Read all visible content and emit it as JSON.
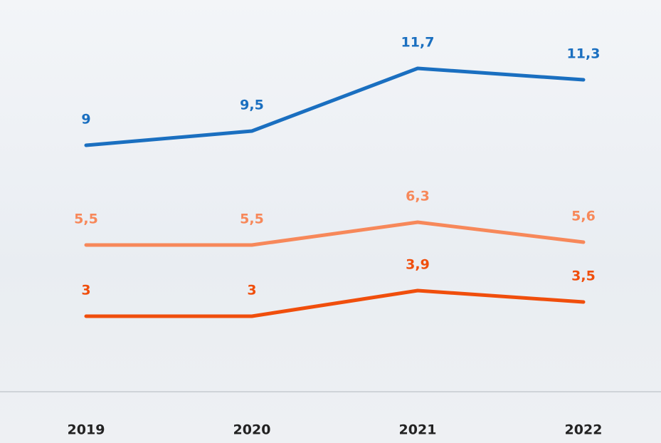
{
  "chart_data": {
    "type": "line",
    "categories": [
      "2019",
      "2020",
      "2021",
      "2022"
    ],
    "series": [
      {
        "color": "#1a6fc0",
        "values": [
          9,
          9.5,
          11.7,
          11.3
        ],
        "value_labels": [
          "9",
          "9,5",
          "11,7",
          "11,3"
        ]
      },
      {
        "color": "#f7885a",
        "values": [
          5.5,
          5.5,
          6.3,
          5.6
        ],
        "value_labels": [
          "5,5",
          "5,5",
          "6,3",
          "5,6"
        ]
      },
      {
        "color": "#f04e0c",
        "values": [
          3,
          3,
          3.9,
          3.5
        ],
        "value_labels": [
          "3",
          "3",
          "3,9",
          "3,5"
        ]
      }
    ]
  }
}
